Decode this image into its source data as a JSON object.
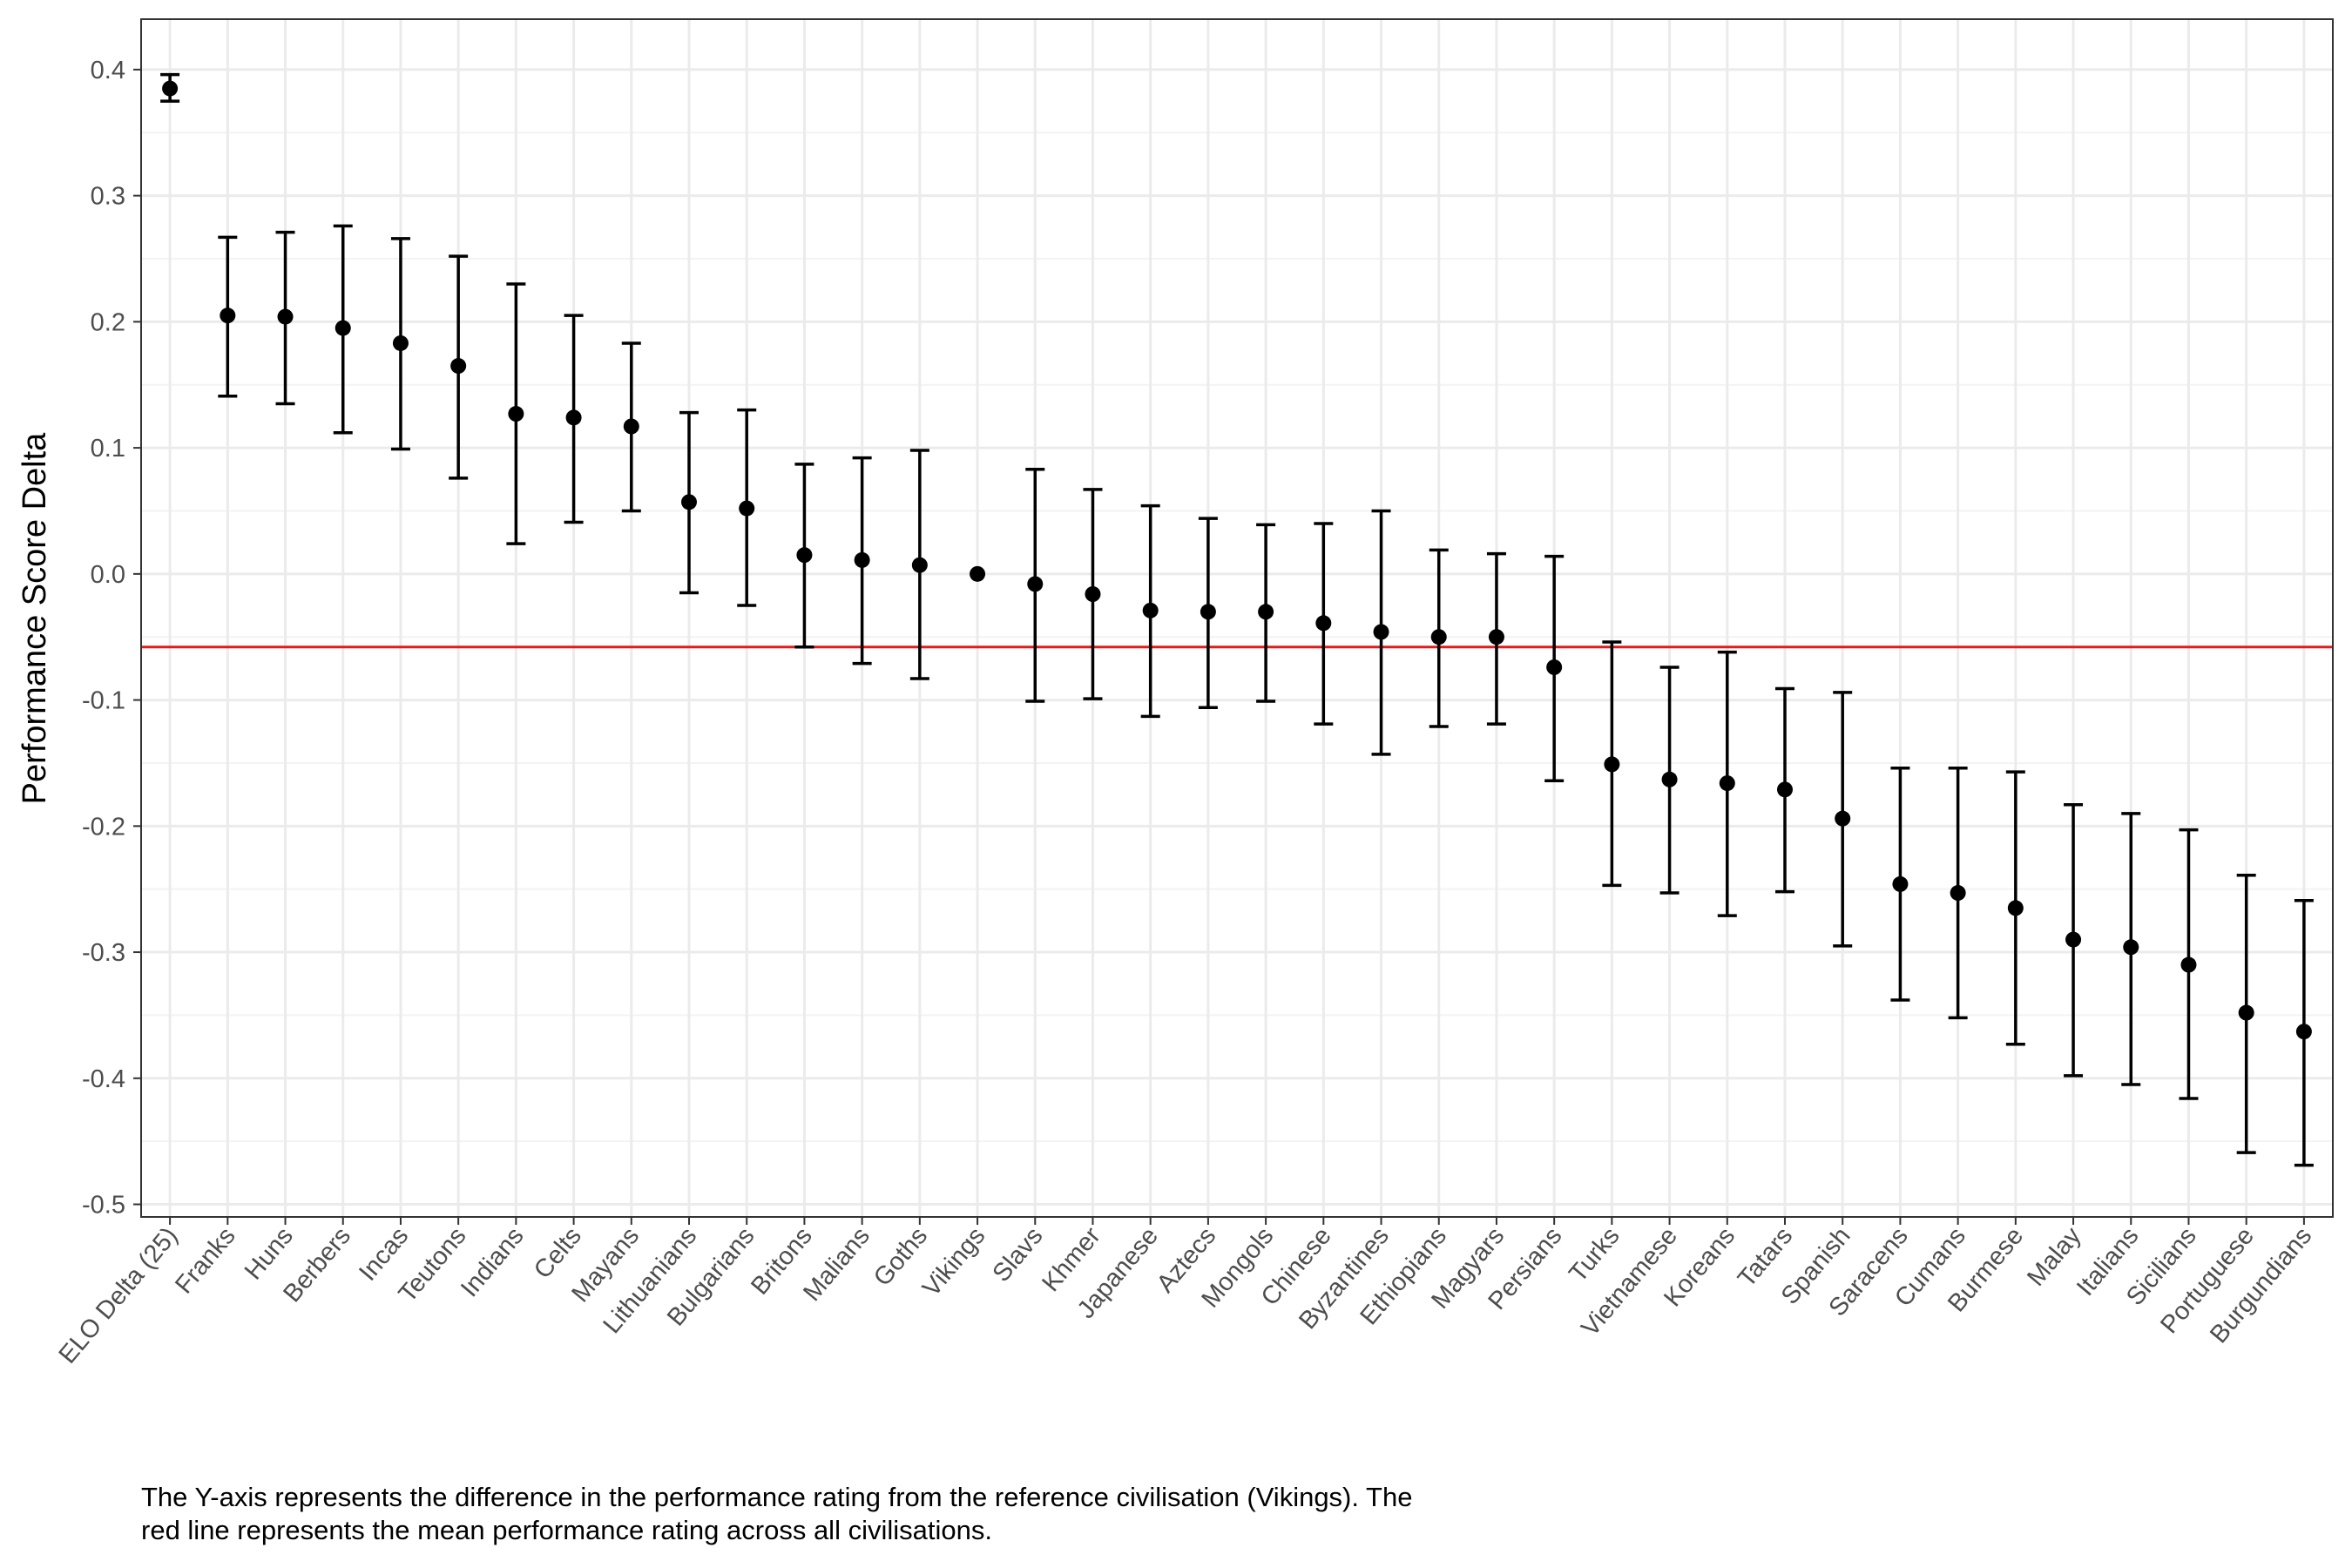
{
  "chart_data": {
    "type": "scatter",
    "title": "",
    "xlabel": "",
    "ylabel": "Performance Score Delta",
    "ylim": [
      -0.51,
      0.44
    ],
    "yticks": [
      -0.5,
      -0.4,
      -0.3,
      -0.2,
      -0.1,
      0.0,
      0.1,
      0.2,
      0.3,
      0.4
    ],
    "ytick_labels": [
      "-0.5",
      "-0.4",
      "-0.3",
      "-0.2",
      "-0.1",
      "0.0",
      "0.1",
      "0.2",
      "0.3",
      "0.4"
    ],
    "grid": true,
    "legend": "none",
    "reference_line": {
      "y": -0.058,
      "color": "#e41a1c"
    },
    "colors": {
      "point": "#000000",
      "errorbar": "#000000",
      "grid_major": "#ebebeb",
      "grid_minor": "#f3f3f3",
      "border": "#333333",
      "tick_text": "#4d4d4d"
    },
    "categories": [
      "ELO Delta (25)",
      "Franks",
      "Huns",
      "Berbers",
      "Incas",
      "Teutons",
      "Indians",
      "Celts",
      "Mayans",
      "Lithuanians",
      "Bulgarians",
      "Britons",
      "Malians",
      "Goths",
      "Vikings",
      "Slavs",
      "Khmer",
      "Japanese",
      "Aztecs",
      "Mongols",
      "Chinese",
      "Byzantines",
      "Ethiopians",
      "Magyars",
      "Persians",
      "Turks",
      "Vietnamese",
      "Koreans",
      "Tatars",
      "Spanish",
      "Saracens",
      "Cumans",
      "Burmese",
      "Malay",
      "Italians",
      "Sicilians",
      "Portuguese",
      "Burgundians"
    ],
    "series": [
      {
        "values": [
          0.385,
          0.205,
          0.204,
          0.195,
          0.183,
          0.165,
          0.127,
          0.124,
          0.117,
          0.057,
          0.052,
          0.015,
          0.011,
          0.007,
          0.0,
          -0.008,
          -0.016,
          -0.029,
          -0.03,
          -0.03,
          -0.039,
          -0.046,
          -0.05,
          -0.05,
          -0.074,
          -0.151,
          -0.163,
          -0.166,
          -0.171,
          -0.194,
          -0.246,
          -0.253,
          -0.265,
          -0.29,
          -0.296,
          -0.31,
          -0.348,
          -0.363
        ],
        "lower": [
          0.375,
          0.141,
          0.135,
          0.112,
          0.099,
          0.076,
          0.024,
          0.041,
          0.05,
          -0.015,
          -0.025,
          -0.058,
          -0.071,
          -0.083,
          0.0,
          -0.101,
          -0.099,
          -0.113,
          -0.106,
          -0.101,
          -0.119,
          -0.143,
          -0.121,
          -0.119,
          -0.164,
          -0.247,
          -0.253,
          -0.271,
          -0.252,
          -0.295,
          -0.338,
          -0.352,
          -0.373,
          -0.398,
          -0.405,
          -0.416,
          -0.459,
          -0.469
        ],
        "upper": [
          0.396,
          0.267,
          0.271,
          0.276,
          0.266,
          0.252,
          0.23,
          0.205,
          0.183,
          0.128,
          0.13,
          0.087,
          0.092,
          0.098,
          0.0,
          0.083,
          0.067,
          0.054,
          0.044,
          0.039,
          0.04,
          0.05,
          0.019,
          0.016,
          0.014,
          -0.054,
          -0.074,
          -0.062,
          -0.091,
          -0.094,
          -0.154,
          -0.154,
          -0.157,
          -0.183,
          -0.19,
          -0.203,
          -0.239,
          -0.259
        ]
      }
    ]
  },
  "caption": {
    "line1": "The Y-axis represents the difference in the performance rating from the reference civilisation (Vikings). The",
    "line2": "red line represents the mean performance rating across all civilisations."
  }
}
